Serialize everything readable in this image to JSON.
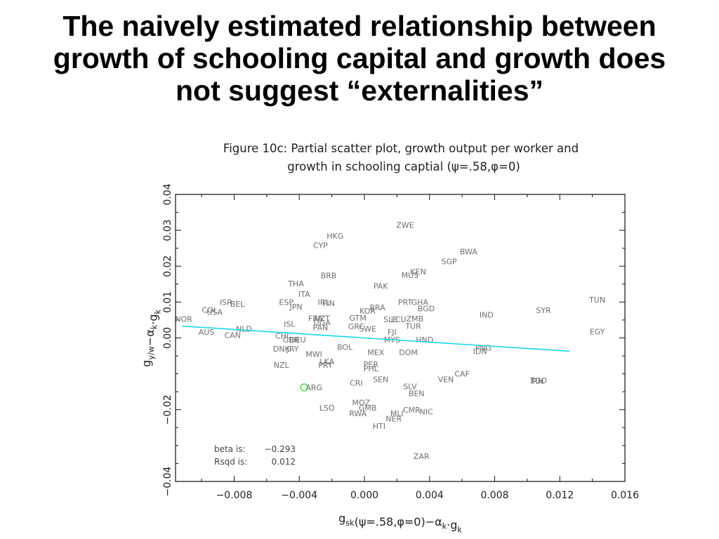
{
  "slide": {
    "title_lines": [
      "The naively estimated relationship between",
      "growth of schooling capital and growth does",
      "not suggest “externalities”"
    ]
  },
  "chart_data": {
    "type": "scatter",
    "title_lines": [
      "Figure 10c:  Partial scatter plot, growth output per worker and",
      "growth in schooling captial (ψ=.58,φ=0)"
    ],
    "xlabel": "g_sk(ψ=.58,φ=0)−α_k·g_k",
    "ylabel": "g_y/w−α_k·g_k",
    "xlim": [
      -0.0116,
      0.016
    ],
    "ylim": [
      -0.04,
      0.04
    ],
    "xticks": [
      -0.008,
      -0.004,
      0.0,
      0.004,
      0.008,
      0.012,
      0.016
    ],
    "xtick_labels": [
      "−0.008",
      "−0.004",
      "0.000",
      "0.004",
      "0.008",
      "0.012",
      "0.016"
    ],
    "yticks": [
      -0.04,
      -0.02,
      0.0,
      0.01,
      0.02,
      0.03,
      0.04
    ],
    "ytick_labels": [
      "−0.04",
      "−0.02",
      "0.00",
      "0.01",
      "0.02",
      "0.03",
      "0.04"
    ],
    "grid": false,
    "stats": {
      "beta_label": "beta is:",
      "beta_value": "−0.293",
      "rsqd_label": "Rsqd is:",
      "rsqd_value": "0.012"
    },
    "fit_line": {
      "x": [
        -0.0112,
        0.0126
      ],
      "y": [
        0.0033,
        -0.0037
      ],
      "color": "#17d7e6"
    },
    "highlight": {
      "x": -0.0037,
      "y": -0.0138,
      "color": "#3cd73c"
    },
    "points": [
      {
        "label": "ZWE",
        "x": 0.0025,
        "y": 0.0315
      },
      {
        "label": "HKG",
        "x": -0.0018,
        "y": 0.0285
      },
      {
        "label": "CYP",
        "x": -0.0027,
        "y": 0.0258
      },
      {
        "label": "BWA",
        "x": 0.0064,
        "y": 0.0241
      },
      {
        "label": "SGP",
        "x": 0.0052,
        "y": 0.0213
      },
      {
        "label": "KEN",
        "x": 0.0033,
        "y": 0.0185
      },
      {
        "label": "MUS",
        "x": 0.0028,
        "y": 0.0175
      },
      {
        "label": "BRB",
        "x": -0.0022,
        "y": 0.0174
      },
      {
        "label": "THA",
        "x": -0.0042,
        "y": 0.0152
      },
      {
        "label": "PAK",
        "x": 0.001,
        "y": 0.0145
      },
      {
        "label": "ITA",
        "x": -0.0037,
        "y": 0.0122
      },
      {
        "label": "TUN",
        "x": 0.0143,
        "y": 0.0107
      },
      {
        "label": "ISR",
        "x": -0.0085,
        "y": 0.01
      },
      {
        "label": "BEL",
        "x": -0.0078,
        "y": 0.0095
      },
      {
        "label": "ESP",
        "x": -0.0048,
        "y": 0.01
      },
      {
        "label": "IRL",
        "x": -0.0025,
        "y": 0.01
      },
      {
        "label": "FIN",
        "x": -0.0022,
        "y": 0.0097
      },
      {
        "label": "PRT",
        "x": 0.0025,
        "y": 0.01
      },
      {
        "label": "GHA",
        "x": 0.0034,
        "y": 0.01
      },
      {
        "label": "JPN",
        "x": -0.0042,
        "y": 0.0087
      },
      {
        "label": "BRA",
        "x": 0.0008,
        "y": 0.0085
      },
      {
        "label": "BGD",
        "x": 0.0038,
        "y": 0.0082
      },
      {
        "label": "COL",
        "x": -0.0095,
        "y": 0.0078
      },
      {
        "label": "USA",
        "x": -0.0092,
        "y": 0.0072
      },
      {
        "label": "KOR",
        "x": 0.0002,
        "y": 0.0075
      },
      {
        "label": "SYR",
        "x": 0.011,
        "y": 0.0077
      },
      {
        "label": "IND",
        "x": 0.0075,
        "y": 0.0065
      },
      {
        "label": "NOR",
        "x": -0.0111,
        "y": 0.0053
      },
      {
        "label": "FRA",
        "x": -0.003,
        "y": 0.0055
      },
      {
        "label": "NZT",
        "x": -0.0026,
        "y": 0.0055
      },
      {
        "label": "GTM",
        "x": -0.0004,
        "y": 0.0056
      },
      {
        "label": "SLE",
        "x": 0.0016,
        "y": 0.0052
      },
      {
        "label": "LCU",
        "x": 0.0021,
        "y": 0.0052
      },
      {
        "label": "ZMB",
        "x": 0.0031,
        "y": 0.0054
      },
      {
        "label": "UGA",
        "x": -0.0026,
        "y": 0.0043
      },
      {
        "label": "ISL",
        "x": -0.0046,
        "y": 0.0039
      },
      {
        "label": "PAN",
        "x": -0.0027,
        "y": 0.0029
      },
      {
        "label": "GRC",
        "x": -0.0005,
        "y": 0.0032
      },
      {
        "label": "SWE",
        "x": 0.0002,
        "y": 0.0025
      },
      {
        "label": "TUR",
        "x": 0.003,
        "y": 0.0033
      },
      {
        "label": "NLD",
        "x": -0.0074,
        "y": 0.0025
      },
      {
        "label": "FJI",
        "x": 0.0017,
        "y": 0.0017
      },
      {
        "label": "AUS",
        "x": -0.0097,
        "y": 0.0017
      },
      {
        "label": "CAN",
        "x": -0.0081,
        "y": 0.0008
      },
      {
        "label": "EGY",
        "x": 0.0143,
        "y": 0.0018
      },
      {
        "label": "CHL",
        "x": -0.005,
        "y": 0.0006
      },
      {
        "label": "MYS",
        "x": 0.0017,
        "y": -0.0005
      },
      {
        "label": "HND",
        "x": 0.0037,
        "y": -0.0005
      },
      {
        "label": "GBR",
        "x": -0.0045,
        "y": -0.0005
      },
      {
        "label": "DEU",
        "x": -0.0041,
        "y": -0.0005
      },
      {
        "label": "BOL",
        "x": -0.0012,
        "y": -0.0025
      },
      {
        "label": "DNK",
        "x": -0.0051,
        "y": -0.003
      },
      {
        "label": "JRY",
        "x": -0.0044,
        "y": -0.003
      },
      {
        "label": "PNG",
        "x": 0.0073,
        "y": -0.0027
      },
      {
        "label": "IDN",
        "x": 0.0071,
        "y": -0.0037
      },
      {
        "label": "MWI",
        "x": -0.0031,
        "y": -0.0045
      },
      {
        "label": "MEX",
        "x": 0.0007,
        "y": -0.004
      },
      {
        "label": "DOM",
        "x": 0.0027,
        "y": -0.004
      },
      {
        "label": "LKA",
        "x": -0.0023,
        "y": -0.0066
      },
      {
        "label": "PER",
        "x": 0.0004,
        "y": -0.0073
      },
      {
        "label": "PRY",
        "x": -0.0024,
        "y": -0.0075
      },
      {
        "label": "PHL",
        "x": 0.0004,
        "y": -0.0085
      },
      {
        "label": "NZL",
        "x": -0.0051,
        "y": -0.0075
      },
      {
        "label": "CAF",
        "x": 0.006,
        "y": -0.01
      },
      {
        "label": "SEN",
        "x": 0.001,
        "y": -0.0115
      },
      {
        "label": "VEN",
        "x": 0.005,
        "y": -0.0115
      },
      {
        "label": "TGO",
        "x": 0.0107,
        "y": -0.0118
      },
      {
        "label": "IRN",
        "x": 0.0106,
        "y": -0.012
      },
      {
        "label": "CRI",
        "x": -0.0005,
        "y": -0.0125
      },
      {
        "label": "SLV",
        "x": 0.0028,
        "y": -0.0135
      },
      {
        "label": "ARG",
        "x": -0.0031,
        "y": -0.0138
      },
      {
        "label": "BEN",
        "x": 0.0032,
        "y": -0.0155
      },
      {
        "label": "MOZ",
        "x": -0.0002,
        "y": -0.018
      },
      {
        "label": "GMB",
        "x": 0.0002,
        "y": -0.0195
      },
      {
        "label": "LSO",
        "x": -0.0023,
        "y": -0.0195
      },
      {
        "label": "RWA",
        "x": -0.0004,
        "y": -0.021
      },
      {
        "label": "CMR",
        "x": 0.0029,
        "y": -0.02
      },
      {
        "label": "NIC",
        "x": 0.0038,
        "y": -0.0205
      },
      {
        "label": "MLI",
        "x": 0.002,
        "y": -0.021
      },
      {
        "label": "NER",
        "x": 0.0018,
        "y": -0.0225
      },
      {
        "label": "HTI",
        "x": 0.0009,
        "y": -0.0245
      },
      {
        "label": "ZAR",
        "x": 0.0035,
        "y": -0.033
      }
    ]
  }
}
